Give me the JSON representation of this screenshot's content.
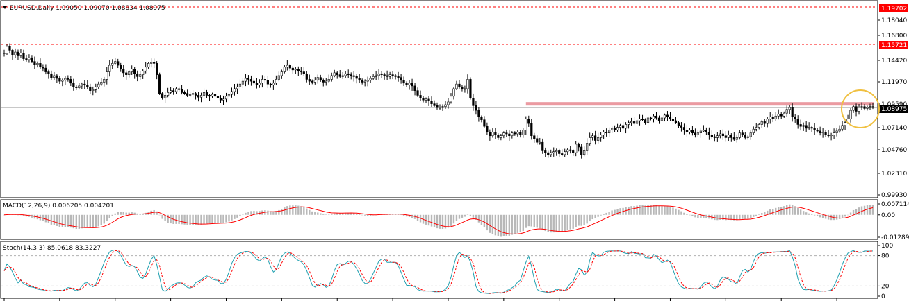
{
  "price_pane": {
    "header": "EURUSD,Daily  1.09050 1.09070 1.08834 1.08975",
    "tick_labels": [
      "1.19702",
      "1.18040",
      "1.16800",
      "1.15721",
      "1.14420",
      "1.11970",
      "1.09590",
      "1.08975",
      "1.07140",
      "1.04760",
      "1.02310",
      "0.99930"
    ],
    "upper_level_label": "1.19702",
    "second_level_label": "1.15721",
    "current_price_label": "1.08975"
  },
  "macd_pane": {
    "header": "MACD(12,26,9) 0.006205 0.004201",
    "tick_labels": [
      "0.007114",
      "0.00",
      "-0.01289"
    ]
  },
  "stoch_pane": {
    "header": "Stoch(14,3,3) 85.0618 83.3227",
    "tick_labels": [
      "100",
      "80",
      "20",
      "0"
    ]
  },
  "colors": {
    "background": "#ffffff",
    "candle": "#000000",
    "dashed_level": "#ff0000",
    "price_tag_bg": "#ff0000",
    "current_tag_bg": "#000000",
    "resistance_zone": "#e88890",
    "highlight_circle": "#f0c040",
    "macd_hist": "#b8b8b8",
    "macd_signal": "#ff0000",
    "stoch_main": "#20a0b0",
    "stoch_signal": "#ff0000"
  },
  "chart_data": [
    {
      "type": "candlestick",
      "pane": "price",
      "symbol": "EURUSD",
      "timeframe": "Daily",
      "last_bar": {
        "open": 1.0905,
        "high": 1.0907,
        "low": 1.08834,
        "close": 1.08975
      },
      "ylim": [
        0.9993,
        1.19702
      ],
      "horizontal_levels": [
        1.19702,
        1.15721
      ],
      "current_price": 1.08975,
      "resistance_zone": 1.0936,
      "grid": false,
      "close_series": [
        1.148,
        1.155,
        1.151,
        1.146,
        1.149,
        1.145,
        1.148,
        1.142,
        1.141,
        1.143,
        1.139,
        1.136,
        1.137,
        1.133,
        1.132,
        1.128,
        1.126,
        1.122,
        1.124,
        1.121,
        1.118,
        1.119,
        1.121,
        1.12,
        1.116,
        1.112,
        1.111,
        1.113,
        1.115,
        1.114,
        1.112,
        1.108,
        1.109,
        1.112,
        1.115,
        1.117,
        1.12,
        1.128,
        1.135,
        1.137,
        1.139,
        1.135,
        1.131,
        1.127,
        1.125,
        1.128,
        1.131,
        1.126,
        1.123,
        1.125,
        1.129,
        1.133,
        1.137,
        1.138,
        1.137,
        1.125,
        1.105,
        1.1,
        1.103,
        1.106,
        1.108,
        1.107,
        1.11,
        1.109,
        1.106,
        1.105,
        1.103,
        1.104,
        1.105,
        1.103,
        1.101,
        1.103,
        1.106,
        1.103,
        1.102,
        1.104,
        1.102,
        1.1,
        1.098,
        1.099,
        1.102,
        1.104,
        1.107,
        1.11,
        1.112,
        1.115,
        1.118,
        1.121,
        1.12,
        1.118,
        1.116,
        1.114,
        1.116,
        1.12,
        1.119,
        1.115,
        1.114,
        1.116,
        1.12,
        1.124,
        1.128,
        1.133,
        1.135,
        1.132,
        1.13,
        1.131,
        1.129,
        1.128,
        1.126,
        1.12,
        1.118,
        1.117,
        1.119,
        1.122,
        1.119,
        1.117,
        1.118,
        1.12,
        1.124,
        1.127,
        1.125,
        1.123,
        1.124,
        1.126,
        1.125,
        1.124,
        1.123,
        1.121,
        1.119,
        1.117,
        1.118,
        1.119,
        1.121,
        1.123,
        1.124,
        1.126,
        1.125,
        1.124,
        1.123,
        1.125,
        1.124,
        1.123,
        1.122,
        1.119,
        1.116,
        1.114,
        1.116,
        1.113,
        1.108,
        1.103,
        1.1,
        1.098,
        1.099,
        1.097,
        1.094,
        1.092,
        1.09,
        1.09,
        1.091,
        1.093,
        1.096,
        1.102,
        1.11,
        1.115,
        1.112,
        1.11,
        1.11,
        1.12,
        1.1,
        1.092,
        1.087,
        1.08,
        1.077,
        1.07,
        1.064,
        1.06,
        1.064,
        1.061,
        1.058,
        1.06,
        1.063,
        1.062,
        1.06,
        1.063,
        1.062,
        1.064,
        1.061,
        1.066,
        1.078,
        1.073,
        1.06,
        1.057,
        1.053,
        1.053,
        1.044,
        1.042,
        1.04,
        1.042,
        1.043,
        1.044,
        1.041,
        1.04,
        1.043,
        1.045,
        1.044,
        1.042,
        1.051,
        1.048,
        1.04,
        1.044,
        1.052,
        1.058,
        1.06,
        1.055,
        1.058,
        1.061,
        1.064,
        1.063,
        1.066,
        1.068,
        1.066,
        1.069,
        1.071,
        1.068,
        1.072,
        1.074,
        1.075,
        1.073,
        1.076,
        1.078,
        1.077,
        1.074,
        1.079,
        1.078,
        1.081,
        1.079,
        1.076,
        1.079,
        1.082,
        1.08,
        1.078,
        1.076,
        1.074,
        1.071,
        1.069,
        1.066,
        1.064,
        1.066,
        1.063,
        1.061,
        1.063,
        1.065,
        1.066,
        1.064,
        1.061,
        1.059,
        1.058,
        1.06,
        1.062,
        1.06,
        1.058,
        1.061,
        1.058,
        1.056,
        1.058,
        1.063,
        1.061,
        1.058,
        1.059,
        1.063,
        1.067,
        1.069,
        1.072,
        1.075,
        1.073,
        1.078,
        1.08,
        1.078,
        1.081,
        1.083,
        1.081,
        1.084,
        1.088,
        1.09,
        1.08,
        1.078,
        1.072,
        1.07,
        1.071,
        1.068,
        1.069,
        1.068,
        1.066,
        1.065,
        1.063,
        1.064,
        1.061,
        1.06,
        1.061,
        1.063,
        1.065,
        1.067,
        1.071,
        1.074,
        1.078,
        1.087,
        1.091,
        1.086,
        1.09,
        1.091,
        1.089,
        1.09,
        1.091,
        1.09
      ]
    },
    {
      "type": "macd",
      "pane": "macd",
      "params": [
        12,
        26,
        9
      ],
      "main": 0.006205,
      "signal": 0.004201,
      "ylim": [
        -0.01289,
        0.007114
      ]
    },
    {
      "type": "stochastic",
      "pane": "stoch",
      "params": [
        14,
        3,
        3
      ],
      "main": 85.0618,
      "signal": 83.3227,
      "ylim": [
        0,
        100
      ],
      "levels": [
        20,
        80
      ]
    }
  ]
}
